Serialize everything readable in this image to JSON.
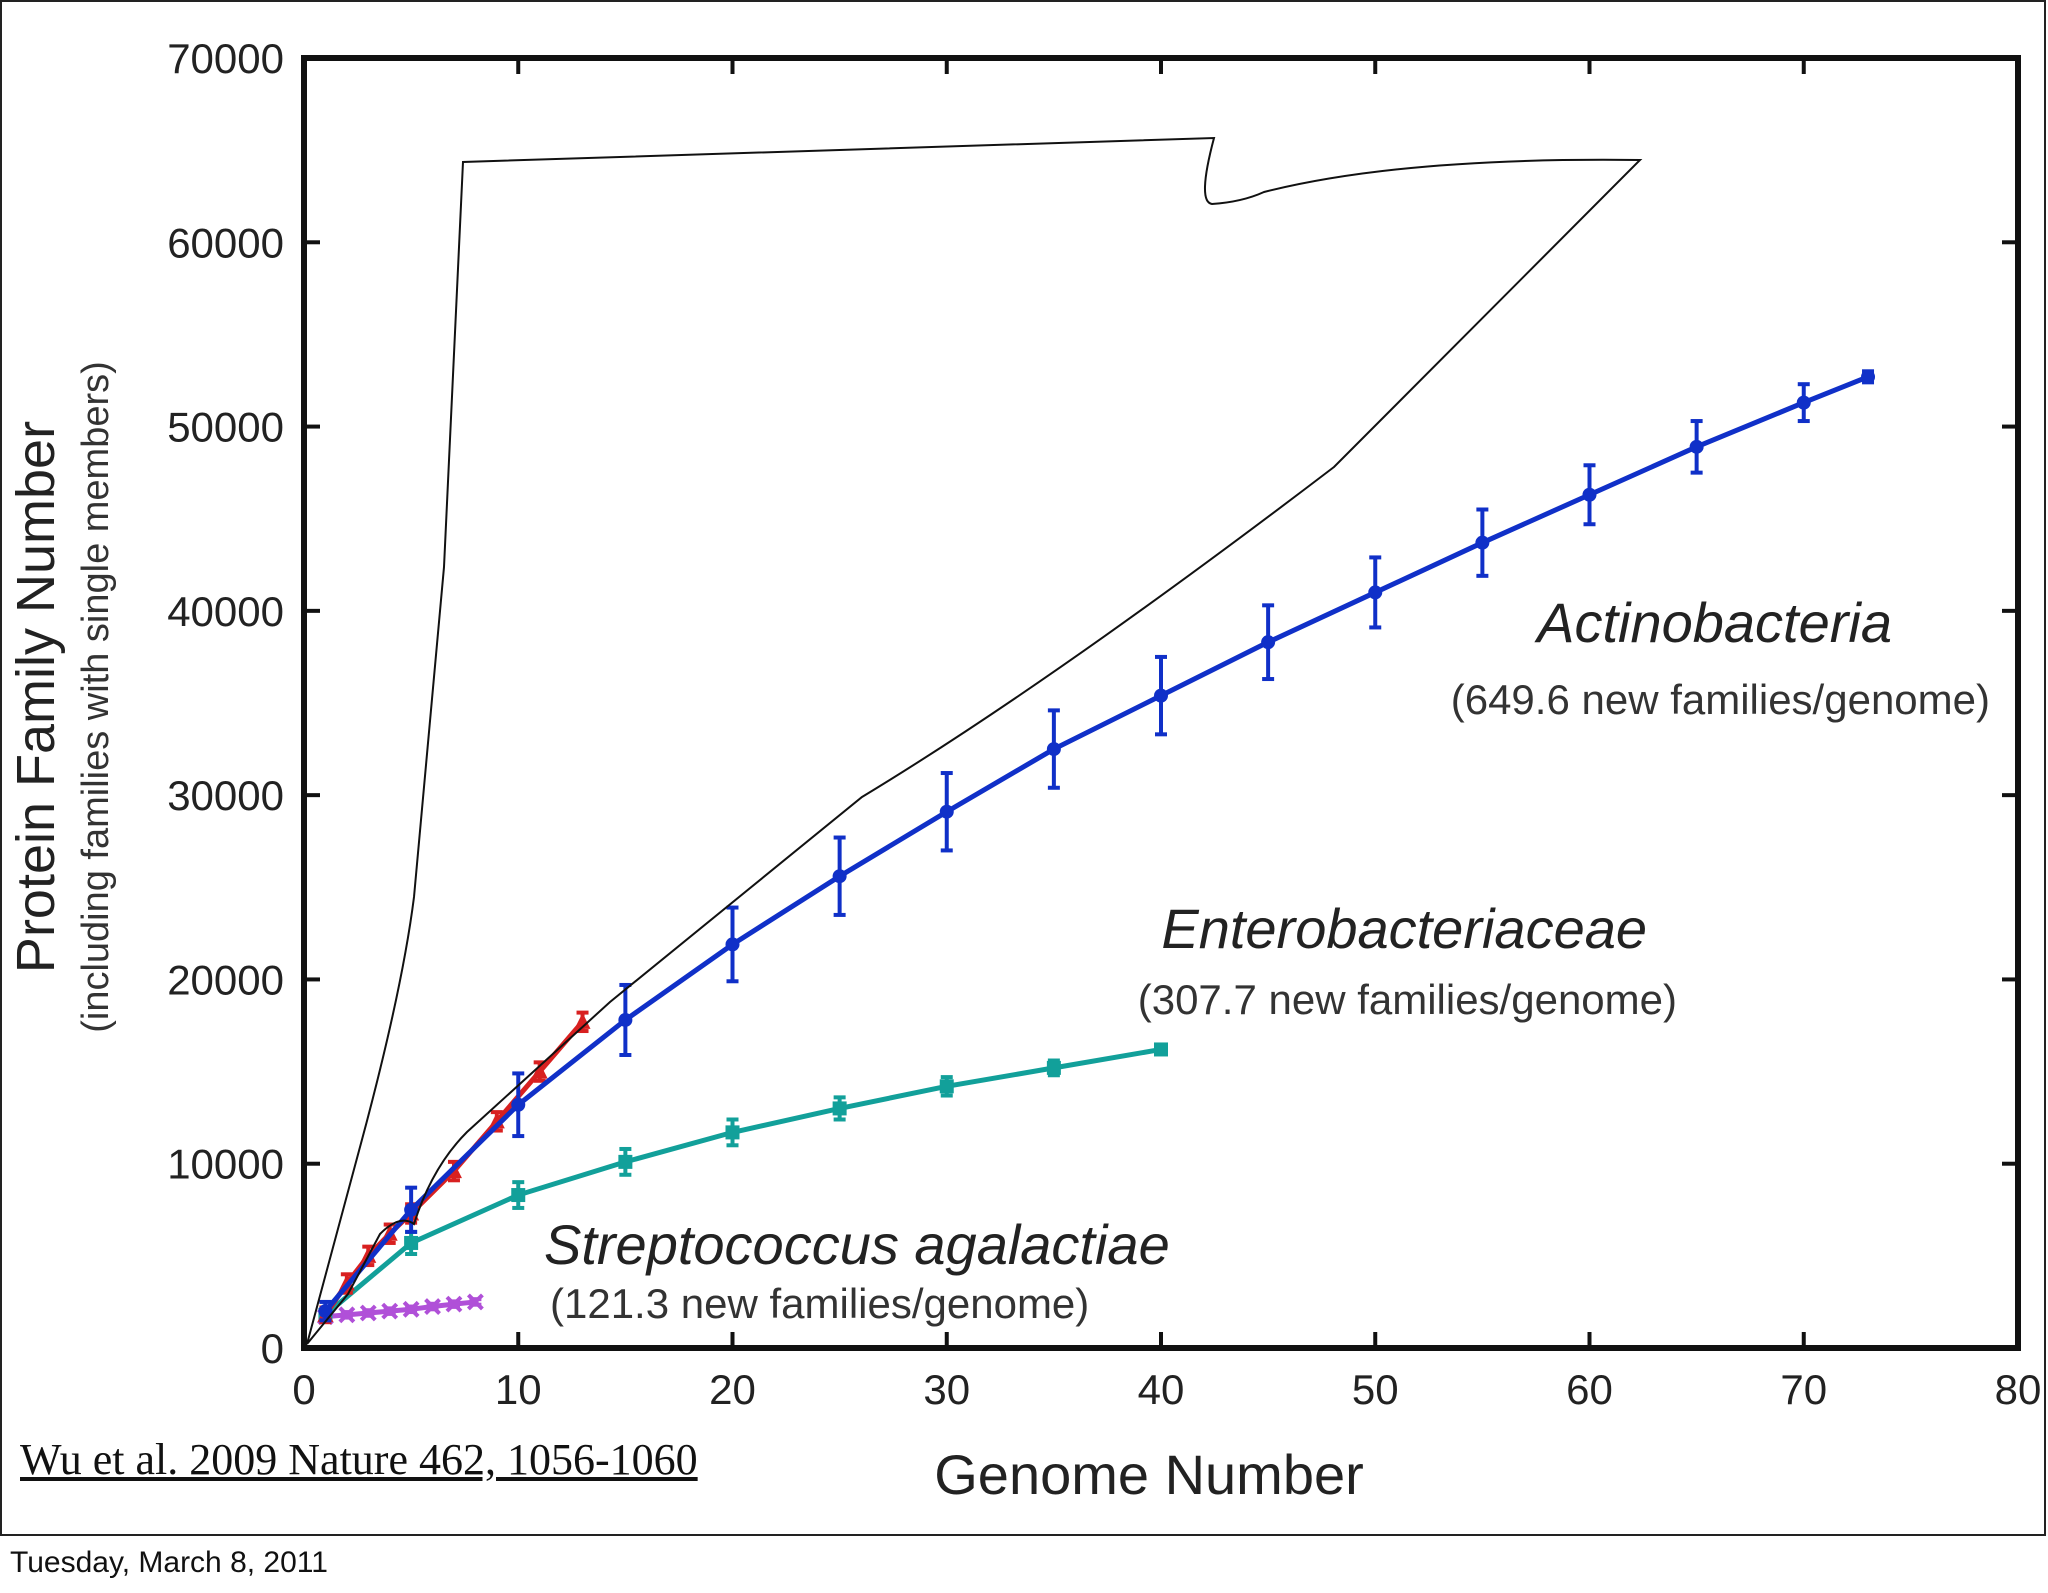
{
  "slide": {
    "citation": "Wu et al. 2009 Nature 462, 1056-1060",
    "footer_date": "Tuesday, March 8, 2011"
  },
  "colors": {
    "actinobacteria": "#1030c8",
    "enterobacteriaceae": "#12a09a",
    "streptococcus": "#b050d8",
    "other_red": "#d82020"
  },
  "chart_data": {
    "type": "line",
    "xlabel": "Genome Number",
    "ylabel": "Protein Family Number",
    "ylabel_sub": "(including families with single members)",
    "xlim": [
      0,
      80
    ],
    "ylim": [
      0,
      70000
    ],
    "x_ticks": [
      "0",
      "10",
      "20",
      "30",
      "40",
      "50",
      "60",
      "70",
      "80"
    ],
    "y_ticks": [
      "0",
      "10000",
      "20000",
      "30000",
      "40000",
      "50000",
      "60000",
      "70000"
    ],
    "grid": false,
    "annotations": [
      {
        "series": "Actinobacteria",
        "title": "Actinobacteria",
        "subtitle": "(649.6 new families/genome)"
      },
      {
        "series": "Enterobacteriaceae",
        "title": "Enterobacteriaceae",
        "subtitle": "(307.7 new families/genome)"
      },
      {
        "series": "Streptococcus agalactiae",
        "title": "Streptococcus agalactiae",
        "subtitle": "(121.3 new families/genome)"
      }
    ],
    "series": [
      {
        "name": "Actinobacteria",
        "color": "#1030c8",
        "marker": "circle",
        "x": [
          1,
          5,
          10,
          15,
          20,
          25,
          30,
          35,
          40,
          45,
          50,
          55,
          60,
          65,
          70,
          73
        ],
        "y": [
          2000,
          7500,
          13200,
          17800,
          21900,
          25600,
          29100,
          32500,
          35400,
          38300,
          41000,
          43700,
          46300,
          48900,
          51300,
          52700
        ],
        "error": [
          500,
          1200,
          1700,
          1900,
          2000,
          2100,
          2100,
          2100,
          2100,
          2000,
          1900,
          1800,
          1600,
          1400,
          1000,
          300
        ]
      },
      {
        "name": "Enterobacteriaceae",
        "color": "#12a09a",
        "marker": "square",
        "x": [
          1,
          5,
          10,
          15,
          20,
          25,
          30,
          35,
          40
        ],
        "y": [
          1800,
          5700,
          8300,
          10100,
          11700,
          13000,
          14200,
          15200,
          16200
        ],
        "error": [
          300,
          600,
          700,
          700,
          700,
          600,
          500,
          400,
          200
        ]
      },
      {
        "name": "Streptococcus agalactiae",
        "color": "#b050d8",
        "marker": "cross",
        "x": [
          1,
          2,
          3,
          4,
          5,
          6,
          7,
          8
        ],
        "y": [
          1700,
          1800,
          1900,
          2000,
          2100,
          2250,
          2380,
          2500
        ],
        "error": [
          150,
          150,
          150,
          150,
          150,
          150,
          150,
          150
        ]
      },
      {
        "name": "",
        "color": "#d82020",
        "marker": "triangle",
        "x": [
          1,
          2,
          3,
          4,
          5,
          7,
          9,
          11,
          13
        ],
        "y": [
          1800,
          3500,
          5000,
          6200,
          7300,
          9600,
          12300,
          15000,
          17700
        ],
        "error": [
          400,
          500,
          500,
          500,
          500,
          500,
          500,
          500,
          500
        ]
      }
    ]
  }
}
